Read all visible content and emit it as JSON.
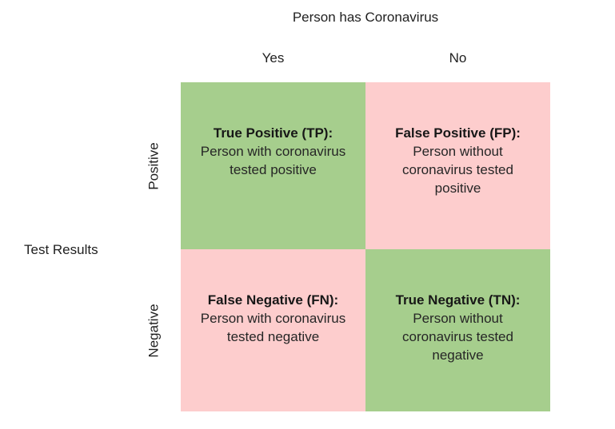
{
  "diagram": {
    "type": "confusion-matrix",
    "colors": {
      "positive_cell_green": "#a6ce8d",
      "negative_cell_pink": "#fdcdcd",
      "text": "#262626"
    },
    "column_axis": {
      "title": "Person has Coronavirus",
      "labels": {
        "yes": "Yes",
        "no": "No"
      }
    },
    "row_axis": {
      "title": "Test Results",
      "labels": {
        "positive": "Positive",
        "negative": "Negative"
      }
    },
    "quadrants": [
      {
        "id": "true-positive",
        "color": "green",
        "title": "True Positive (TP):",
        "lines": [
          "Person with coronavirus",
          "tested positive"
        ]
      },
      {
        "id": "false-positive",
        "color": "pink",
        "title": "False Positive (FP):",
        "lines": [
          "Person without",
          "coronavirus tested",
          "positive"
        ]
      },
      {
        "id": "false-negative",
        "color": "pink",
        "title": "False Negative (FN):",
        "lines": [
          "Person with coronavirus",
          "tested negative"
        ]
      },
      {
        "id": "true-negative",
        "color": "green",
        "title": "True Negative (TN):",
        "lines": [
          "Person without",
          "coronavirus tested",
          "negative"
        ]
      }
    ]
  }
}
